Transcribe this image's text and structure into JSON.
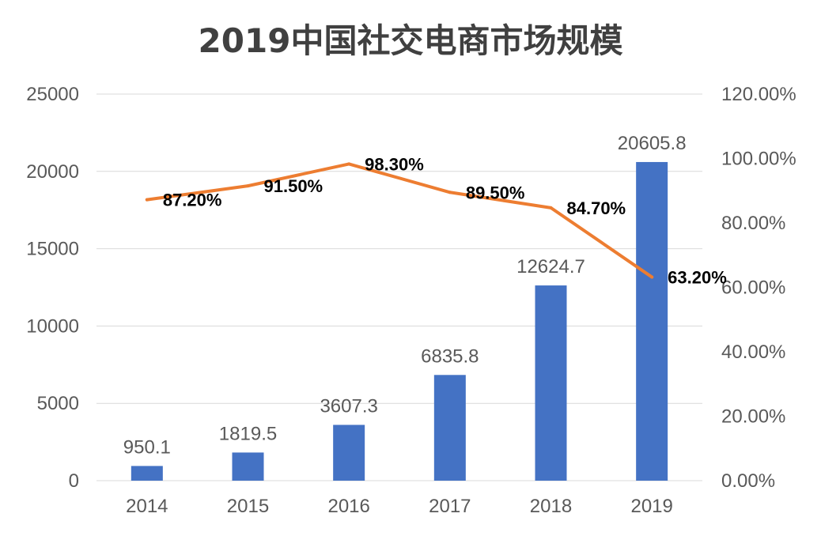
{
  "colors": {
    "bar": "#4472c4",
    "line": "#ed7d31",
    "grid": "#d9d9d9",
    "text": "#595959",
    "title": "#404040"
  },
  "chart_data": {
    "type": "bar",
    "title": "2019中国社交电商市场规模",
    "categories": [
      "2014",
      "2015",
      "2016",
      "2017",
      "2018",
      "2019"
    ],
    "series": [
      {
        "type": "bar",
        "axis": "left",
        "values": [
          950.1,
          1819.5,
          3607.3,
          6835.8,
          12624.7,
          20605.8
        ],
        "labels": [
          "950.1",
          "1819.5",
          "3607.3",
          "6835.8",
          "12624.7",
          "20605.8"
        ]
      },
      {
        "type": "line",
        "axis": "right",
        "values": [
          87.2,
          91.5,
          98.3,
          89.5,
          84.7,
          63.2
        ],
        "labels": [
          "87.20%",
          "91.50%",
          "98.30%",
          "89.50%",
          "84.70%",
          "63.20%"
        ]
      }
    ],
    "ylim_left": [
      0,
      25000
    ],
    "ylim_right": [
      0,
      120
    ],
    "yticks_left": [
      "0",
      "5000",
      "10000",
      "15000",
      "20000",
      "25000"
    ],
    "yticks_right": [
      "0.00%",
      "20.00%",
      "40.00%",
      "60.00%",
      "80.00%",
      "100.00%",
      "120.00%"
    ],
    "grid": true,
    "legend": "none"
  }
}
